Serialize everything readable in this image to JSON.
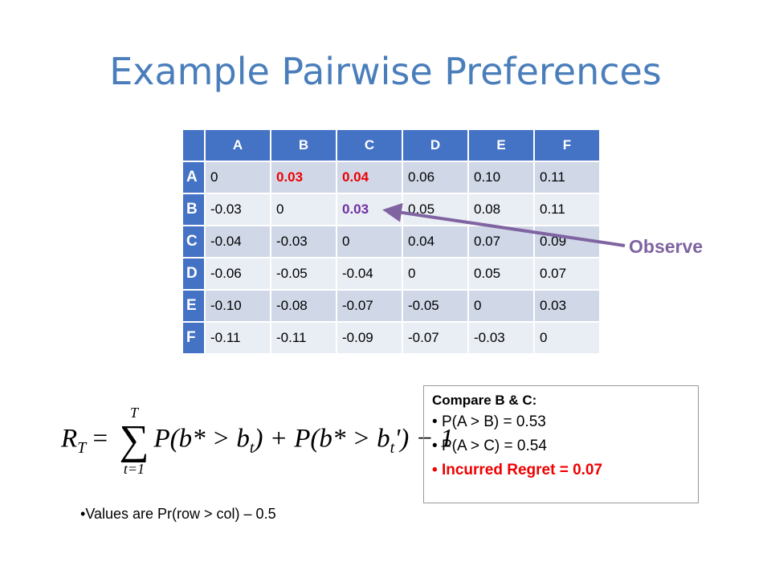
{
  "title": "Example Pairwise Preferences",
  "table": {
    "header": [
      "A",
      "B",
      "C",
      "D",
      "E",
      "F"
    ],
    "rows": [
      [
        "A",
        "0",
        "0.03",
        "0.04",
        "0.06",
        "0.10",
        "0.11"
      ],
      [
        "B",
        "-0.03",
        "0",
        "0.03",
        "0.05",
        "0.08",
        "0.11"
      ],
      [
        "C",
        "-0.04",
        "-0.03",
        "0",
        "0.04",
        "0.07",
        "0.09"
      ],
      [
        "D",
        "-0.06",
        "-0.05",
        "-0.04",
        "0",
        "0.05",
        "0.07"
      ],
      [
        "E",
        "-0.10",
        "-0.08",
        "-0.07",
        "-0.05",
        "0",
        "0.03"
      ],
      [
        "F",
        "-0.11",
        "-0.11",
        "-0.09",
        "-0.07",
        "-0.03",
        "0"
      ]
    ]
  },
  "annotation": "Observe",
  "formula": {
    "lhs": "R",
    "lhs_sub": "T",
    "eq": "=",
    "sum_top": "T",
    "sum_symbol": "∑",
    "sum_bottom": "t=1",
    "term1": "P(b* > b",
    "term1_sub": "t",
    "term2": ") + P(b* > b",
    "term2_sub": "t",
    "term3": "') − 1"
  },
  "compare": {
    "heading": "Compare B & C:",
    "items": [
      "P(A > B) = 0.53",
      "P(A > C) = 0.54",
      "Incurred Regret = 0.07"
    ]
  },
  "footnote": "Values are Pr(row > col) – 0.5"
}
